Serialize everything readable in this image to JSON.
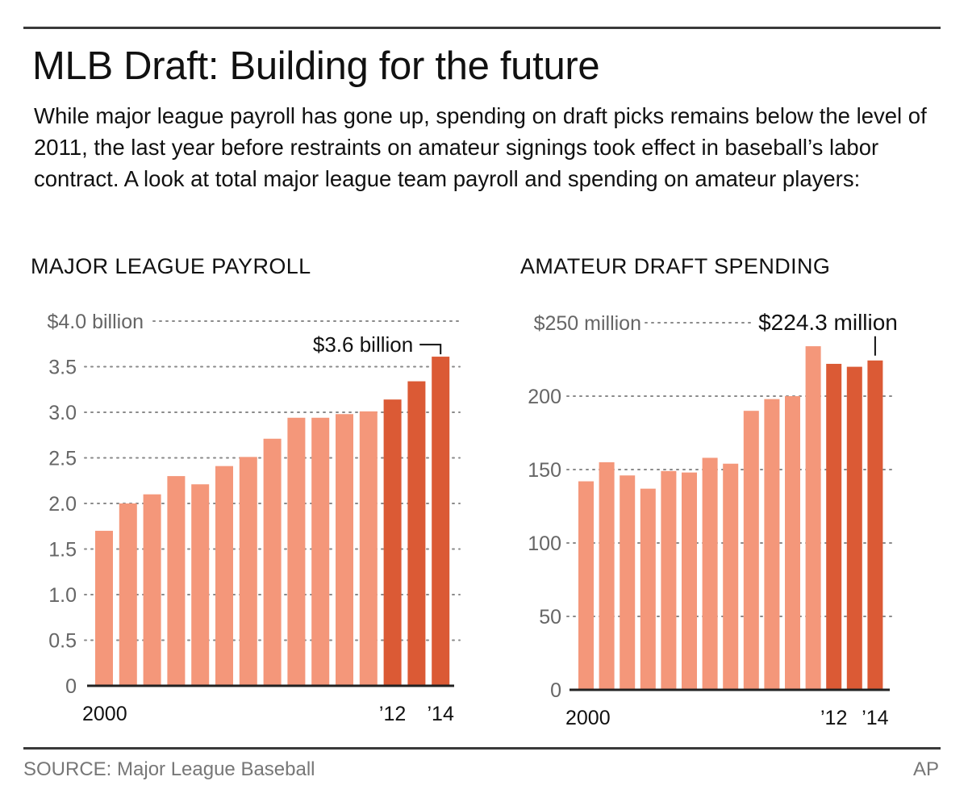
{
  "header": {
    "title": "MLB Draft: Building for the future",
    "subtitle": "While major league payroll has gone up, spending on draft picks remains below the level of 2011, the last year before restraints on amateur signings took effect in baseball’s labor contract. A look at total major league team payroll and spending on amateur players:"
  },
  "colors": {
    "bar_light": "#F4977A",
    "bar_dark": "#DB5A35",
    "grid": "#8a8a8a",
    "axis": "#222222",
    "tick_text": "#666666"
  },
  "chart_data": [
    {
      "type": "bar",
      "title": "MAJOR LEAGUE PAYROLL",
      "xlabel": "",
      "ylabel": "",
      "unit": "billions of dollars",
      "categories": [
        "2000",
        "2001",
        "2002",
        "2003",
        "2004",
        "2005",
        "2006",
        "2007",
        "2008",
        "2009",
        "2010",
        "2011",
        "2012",
        "2013",
        "2014"
      ],
      "values": [
        1.7,
        2.0,
        2.1,
        2.3,
        2.21,
        2.41,
        2.51,
        2.71,
        2.94,
        2.94,
        2.98,
        3.01,
        3.14,
        3.34,
        3.61
      ],
      "highlight_from": "2012",
      "ylim": [
        0,
        4.0
      ],
      "yticks": [
        0,
        0.5,
        1.0,
        1.5,
        2.0,
        2.5,
        3.0,
        3.5,
        4.0
      ],
      "ytick_labels": [
        "0",
        "0.5",
        "1.0",
        "1.5",
        "2.0",
        "2.5",
        "3.0",
        "3.5",
        "$4.0 billion"
      ],
      "xtick_labels": [
        {
          "category": "2000",
          "label": "2000"
        },
        {
          "category": "2012",
          "label": "’12"
        },
        {
          "category": "2014",
          "label": "’14"
        }
      ],
      "annotation": {
        "category": "2014",
        "text": "$3.6 billion"
      },
      "grid": true
    },
    {
      "type": "bar",
      "title": "AMATEUR DRAFT SPENDING",
      "xlabel": "",
      "ylabel": "",
      "unit": "millions of dollars",
      "categories": [
        "2000",
        "2001",
        "2002",
        "2003",
        "2004",
        "2005",
        "2006",
        "2007",
        "2008",
        "2009",
        "2010",
        "2011",
        "2012",
        "2013",
        "2014"
      ],
      "values": [
        142,
        155,
        146,
        137,
        149,
        148,
        158,
        154,
        190,
        198,
        200,
        234,
        222,
        220,
        224.3
      ],
      "highlight_from": "2012",
      "ylim": [
        0,
        250
      ],
      "yticks": [
        0,
        50,
        100,
        150,
        200,
        250
      ],
      "ytick_labels": [
        "0",
        "50",
        "100",
        "150",
        "200",
        "$250 million"
      ],
      "xtick_labels": [
        {
          "category": "2000",
          "label": "2000"
        },
        {
          "category": "2012",
          "label": "’12"
        },
        {
          "category": "2014",
          "label": "’14"
        }
      ],
      "annotation": {
        "category": "2014",
        "text": "$224.3 million"
      },
      "grid": true
    }
  ],
  "footer": {
    "source": "SOURCE: Major League Baseball",
    "credit": "AP"
  }
}
